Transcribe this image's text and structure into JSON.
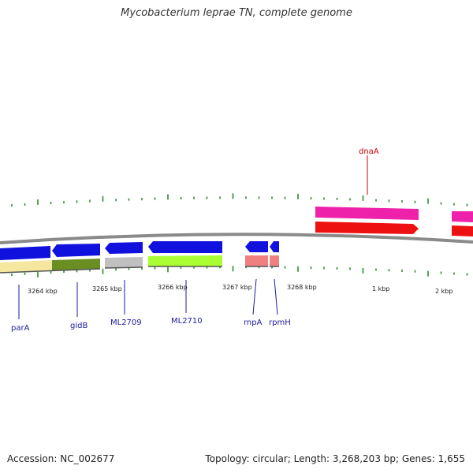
{
  "title": "Mycobacterium leprae TN, complete genome",
  "footer": {
    "accession": "Accession: NC_002677",
    "summary": "Topology: circular; Length: 3,268,203 bp; Genes: 1,655"
  },
  "colors": {
    "backbone": "#8a8a8a",
    "tick": "#2e8b2e",
    "gene_blue": "#1111dd",
    "dnaA_label": "#cc0000"
  },
  "scale_labels": [
    "3264 kbp",
    "3265 kbp",
    "3266 kbp",
    "3267 kbp",
    "3268 kbp",
    "1 kbp",
    "2 kbp"
  ],
  "genes": [
    {
      "name": "parA",
      "label_color": "#1a1aa0",
      "gene_color": "#1111dd",
      "product_color": "#f5e6a0"
    },
    {
      "name": "gidB",
      "label_color": "#1a1aa0",
      "gene_color": "#1111dd",
      "product_color": "#6b8e23"
    },
    {
      "name": "ML2709",
      "label_color": "#1a1aa0",
      "gene_color": "#1111dd",
      "product_color": "#c0c0c0"
    },
    {
      "name": "ML2710",
      "label_color": "#1a1aa0",
      "gene_color": "#1111dd",
      "product_color": "#aaff33"
    },
    {
      "name": "rnpA",
      "label_color": "#1a1aa0",
      "gene_color": "#1111dd",
      "product_color": "#f08080"
    },
    {
      "name": "rpmH",
      "label_color": "#1a1aa0",
      "gene_color": "#1111dd",
      "product_color": "#f08080"
    },
    {
      "name": "dnaA",
      "label_color": "#cc0000",
      "gene_color": "#ee1111",
      "product_color": "#ee22aa"
    }
  ]
}
